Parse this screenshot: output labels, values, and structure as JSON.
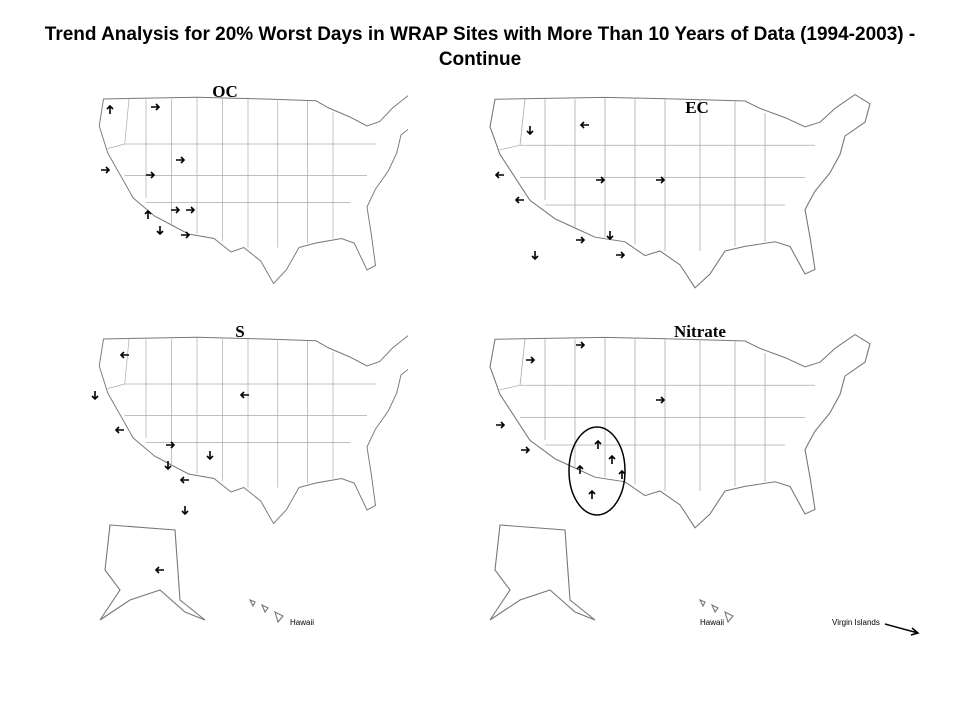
{
  "header": {
    "title": "Trend Analysis for 20% Worst Days in WRAP Sites with More Than 10 Years of Data (1994-2003) - Continue"
  },
  "maps": [
    {
      "label": "OC"
    },
    {
      "label": "EC"
    },
    {
      "label": "S",
      "inset_label": "Hawaii"
    },
    {
      "label": "Nitrate",
      "inset_label": "Hawaii",
      "extra_label": "Virgin Islands"
    }
  ]
}
